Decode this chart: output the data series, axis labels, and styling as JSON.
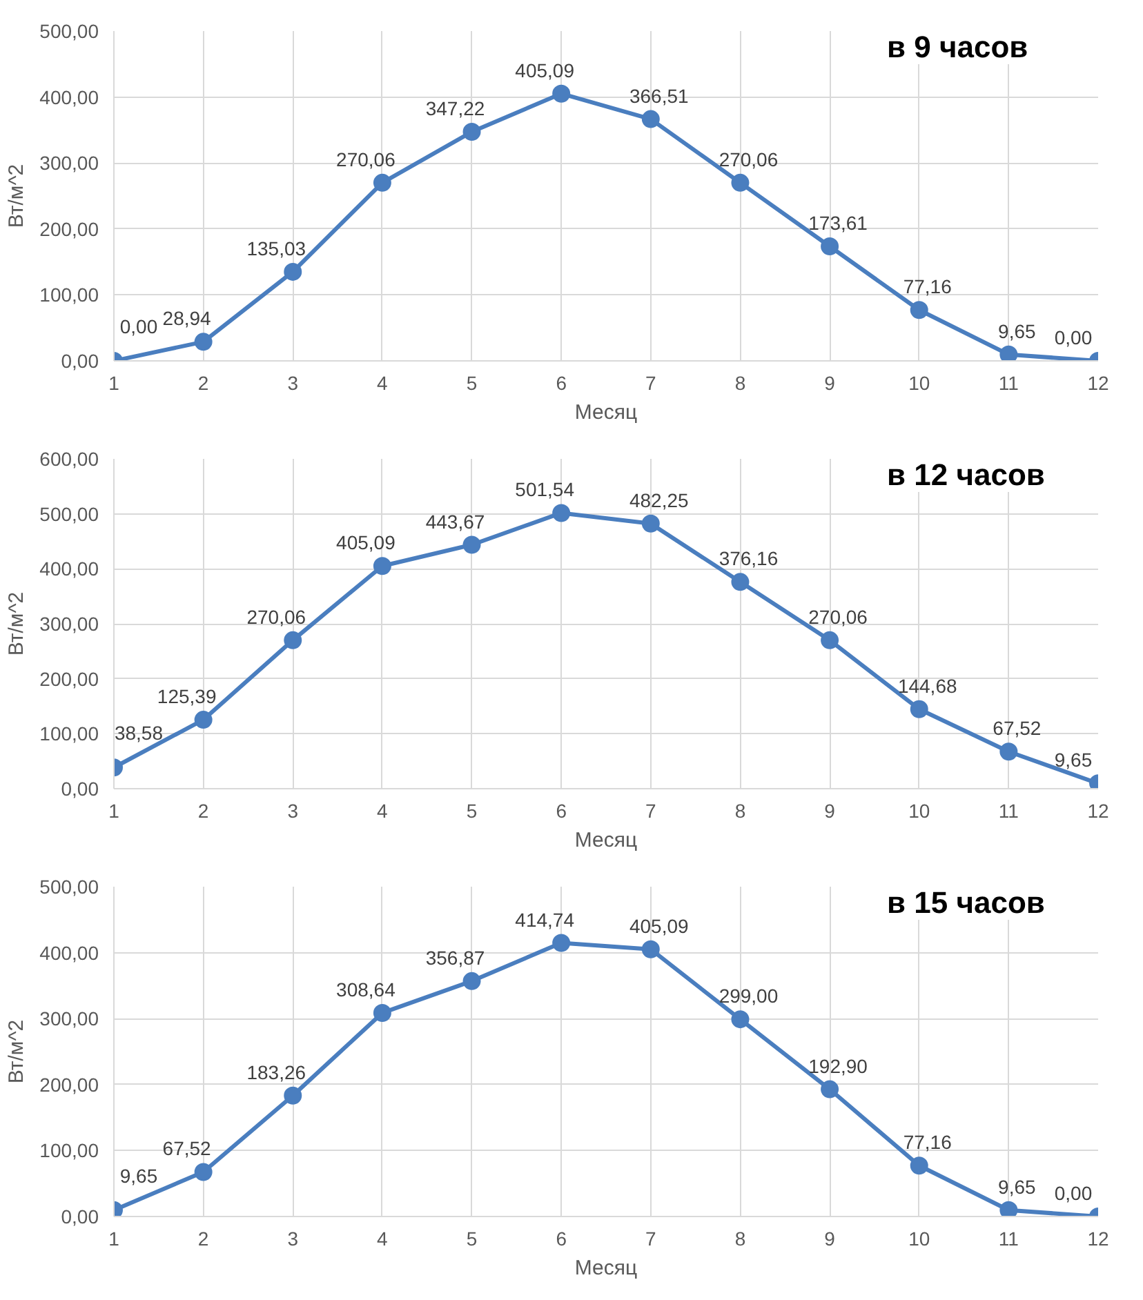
{
  "chart_data": [
    {
      "type": "line",
      "title": "в 9 часов",
      "xlabel": "Месяц",
      "ylabel": "Вт/м^2",
      "x": [
        1,
        2,
        3,
        4,
        5,
        6,
        7,
        8,
        9,
        10,
        11,
        12
      ],
      "xlim": [
        1,
        12
      ],
      "xticks": [
        1,
        2,
        3,
        4,
        5,
        6,
        7,
        8,
        9,
        10,
        11,
        12
      ],
      "ylim": [
        0,
        500
      ],
      "yticks": [
        {
          "value": 0,
          "label": "0,00"
        },
        {
          "value": 100,
          "label": "100,00"
        },
        {
          "value": 200,
          "label": "200,00"
        },
        {
          "value": 300,
          "label": "300,00"
        },
        {
          "value": 400,
          "label": "400,00"
        },
        {
          "value": 500,
          "label": "500,00"
        }
      ],
      "grid": true,
      "marker": "circle",
      "line_style": "solid",
      "series": [
        {
          "color": "#4a7ebf",
          "values": [
            0,
            28.94,
            135.03,
            270.06,
            347.22,
            405.09,
            366.51,
            270.06,
            173.61,
            77.16,
            9.65,
            0
          ],
          "value_labels": [
            "0,00",
            "28,94",
            "135,03",
            "270,06",
            "347,22",
            "405,09",
            "366,51",
            "270,06",
            "173,61",
            "77,16",
            "9,65",
            "0,00"
          ]
        }
      ]
    },
    {
      "type": "line",
      "title": "в 12 часов",
      "xlabel": "Месяц",
      "ylabel": "Вт/м^2",
      "x": [
        1,
        2,
        3,
        4,
        5,
        6,
        7,
        8,
        9,
        10,
        11,
        12
      ],
      "xlim": [
        1,
        12
      ],
      "xticks": [
        1,
        2,
        3,
        4,
        5,
        6,
        7,
        8,
        9,
        10,
        11,
        12
      ],
      "ylim": [
        0,
        600
      ],
      "yticks": [
        {
          "value": 0,
          "label": "0,00"
        },
        {
          "value": 100,
          "label": "100,00"
        },
        {
          "value": 200,
          "label": "200,00"
        },
        {
          "value": 300,
          "label": "300,00"
        },
        {
          "value": 400,
          "label": "400,00"
        },
        {
          "value": 500,
          "label": "500,00"
        },
        {
          "value": 600,
          "label": "600,00"
        }
      ],
      "grid": true,
      "marker": "circle",
      "line_style": "solid",
      "series": [
        {
          "color": "#4a7ebf",
          "values": [
            38.58,
            125.39,
            270.06,
            405.09,
            443.67,
            501.54,
            482.25,
            376.16,
            270.06,
            144.68,
            67.52,
            9.65
          ],
          "value_labels": [
            "38,58",
            "125,39",
            "270,06",
            "405,09",
            "443,67",
            "501,54",
            "482,25",
            "376,16",
            "270,06",
            "144,68",
            "67,52",
            "9,65"
          ]
        }
      ]
    },
    {
      "type": "line",
      "title": "в 15 часов",
      "xlabel": "Месяц",
      "ylabel": "Вт/м^2",
      "x": [
        1,
        2,
        3,
        4,
        5,
        6,
        7,
        8,
        9,
        10,
        11,
        12
      ],
      "xlim": [
        1,
        12
      ],
      "xticks": [
        1,
        2,
        3,
        4,
        5,
        6,
        7,
        8,
        9,
        10,
        11,
        12
      ],
      "ylim": [
        0,
        500
      ],
      "yticks": [
        {
          "value": 0,
          "label": "0,00"
        },
        {
          "value": 100,
          "label": "100,00"
        },
        {
          "value": 200,
          "label": "200,00"
        },
        {
          "value": 300,
          "label": "300,00"
        },
        {
          "value": 400,
          "label": "400,00"
        },
        {
          "value": 500,
          "label": "500,00"
        }
      ],
      "grid": true,
      "marker": "circle",
      "line_style": "solid",
      "series": [
        {
          "color": "#4a7ebf",
          "values": [
            9.65,
            67.52,
            183.26,
            308.64,
            356.87,
            414.74,
            405.09,
            299.0,
            192.9,
            77.16,
            9.65,
            0
          ],
          "value_labels": [
            "9,65",
            "67,52",
            "183,26",
            "308,64",
            "356,87",
            "414,74",
            "405,09",
            "299,00",
            "192,90",
            "77,16",
            "9,65",
            "0,00"
          ]
        }
      ]
    }
  ]
}
